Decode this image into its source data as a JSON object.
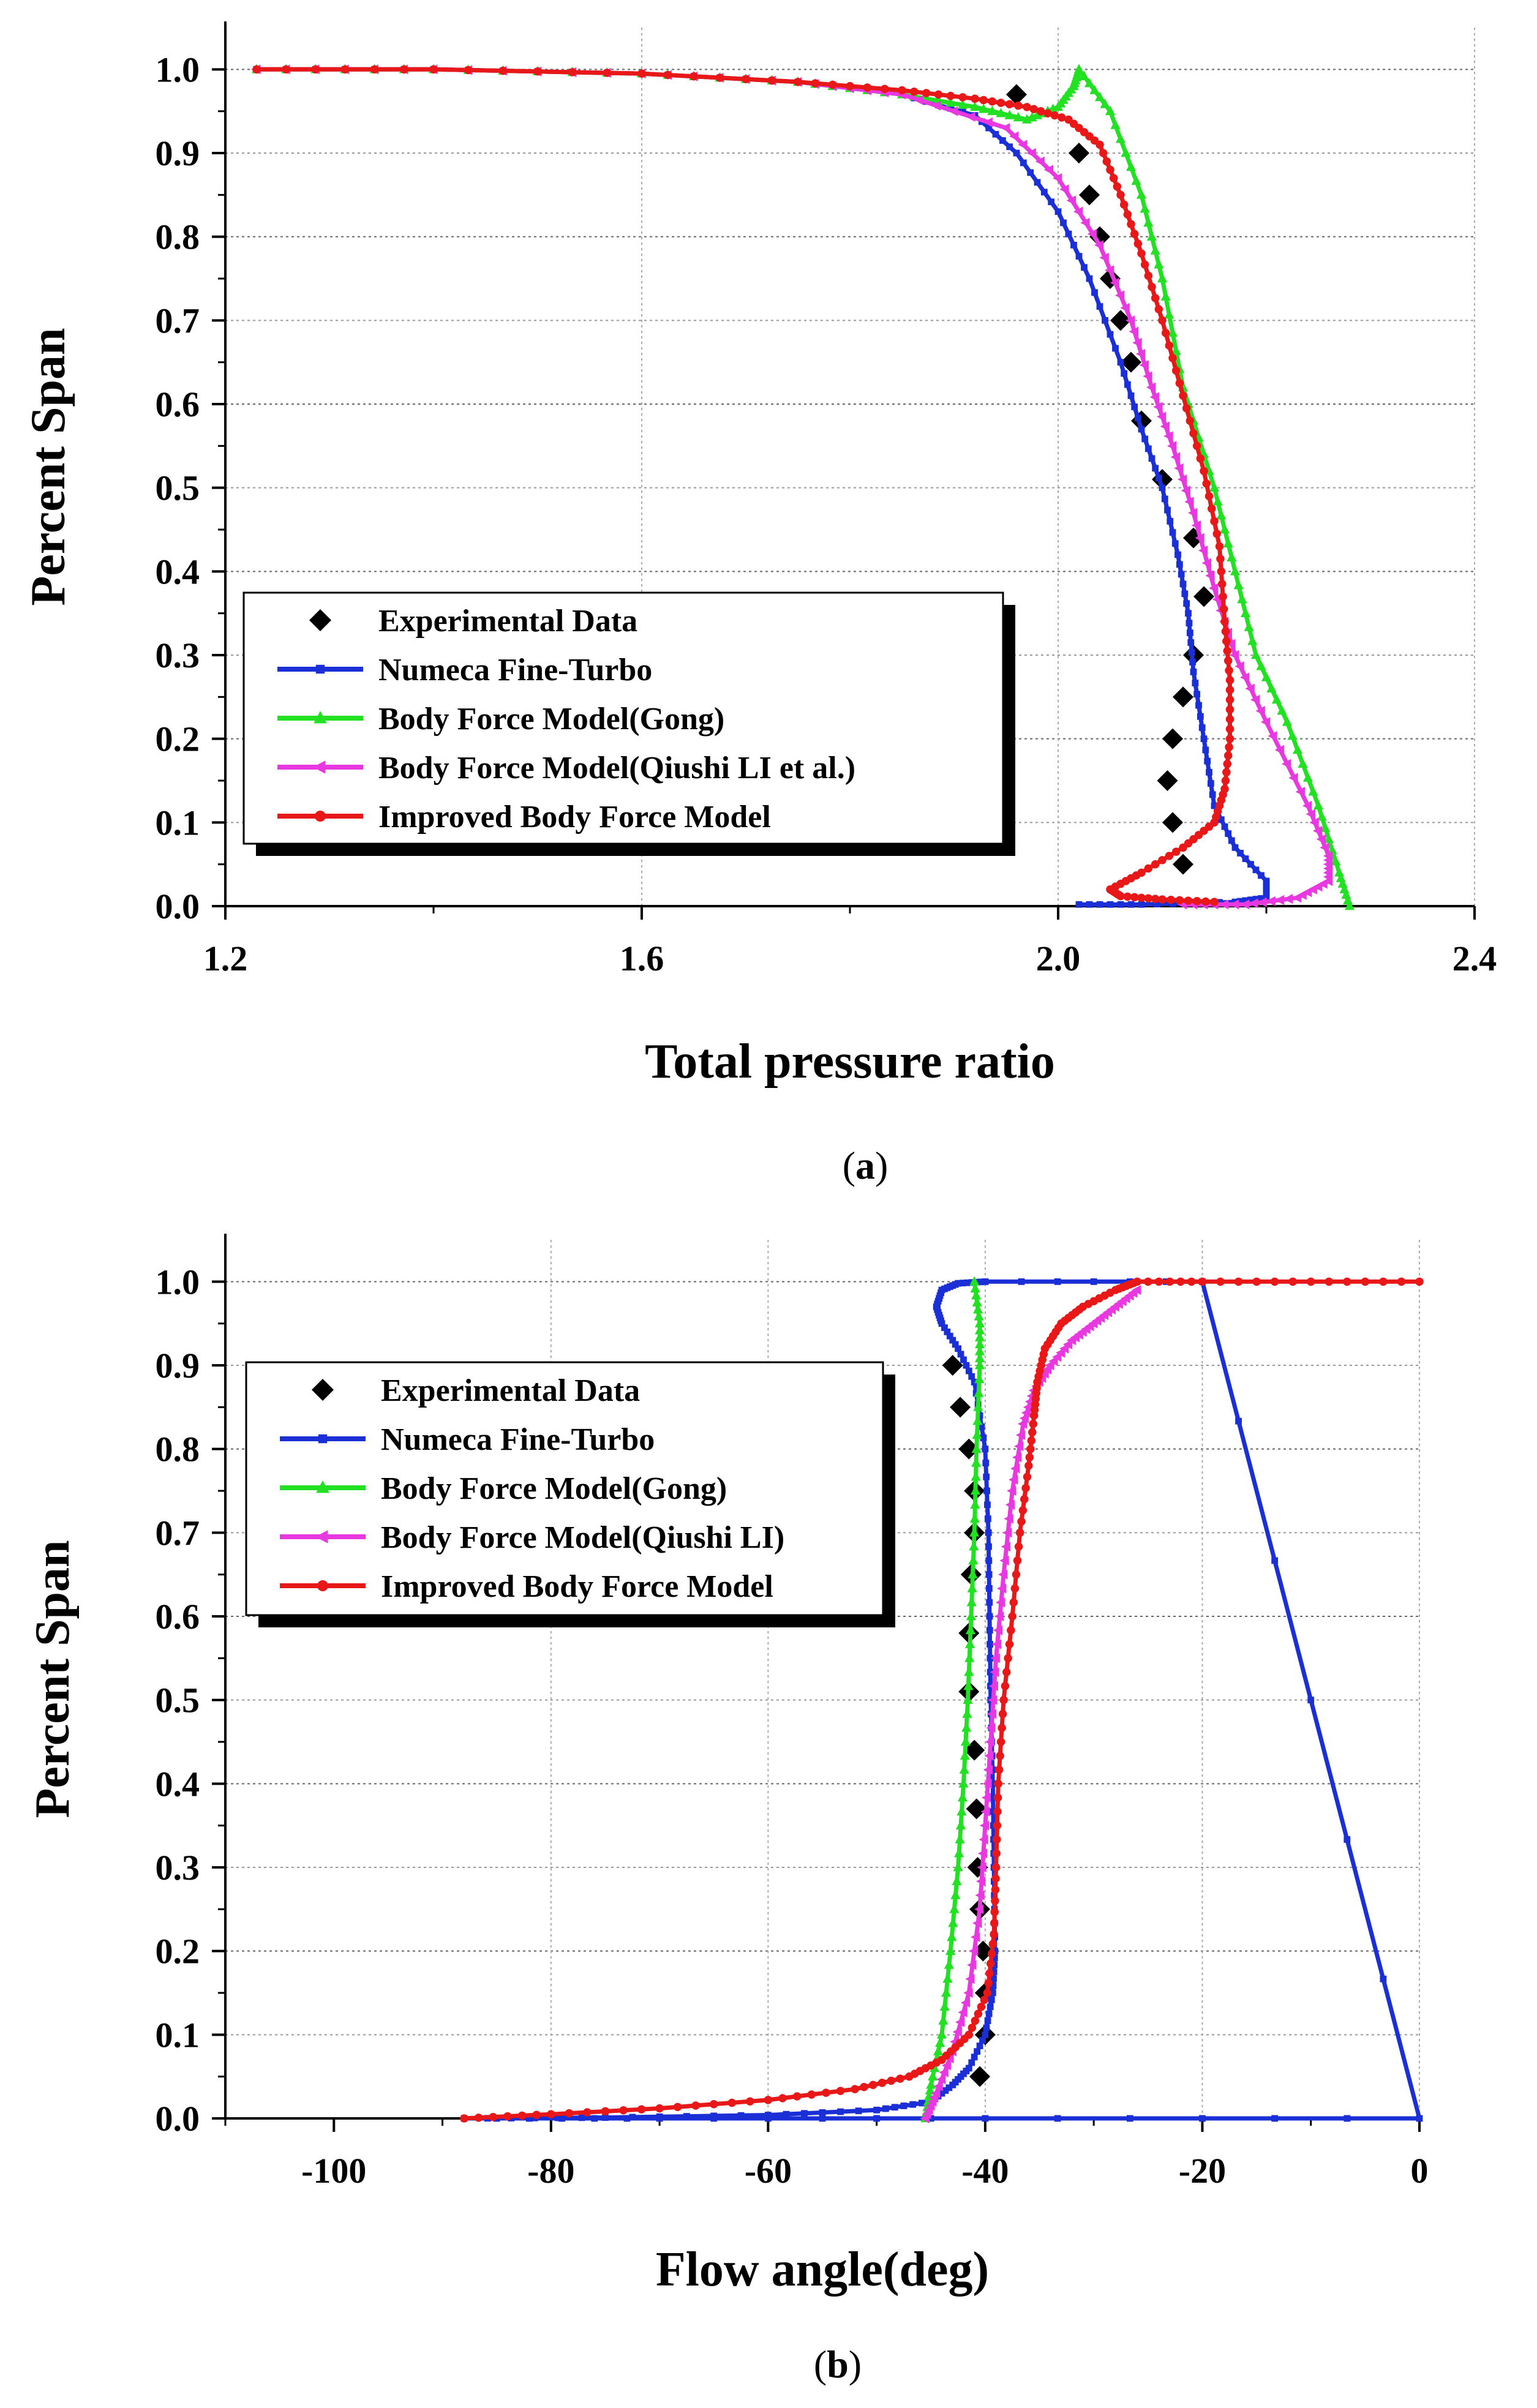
{
  "chart_data": [
    {
      "type": "line",
      "caption_open": "(",
      "caption_letter": "a",
      "caption_close": ")",
      "xlabel": "Total pressure ratio",
      "ylabel": "Percent Span",
      "xlim": [
        1.2,
        2.4
      ],
      "ylim": [
        0.0,
        1.05
      ],
      "xticks": [
        "1.2",
        "1.6",
        "2.0",
        "2.4"
      ],
      "xtick_values": [
        1.2,
        1.6,
        2.0,
        2.4
      ],
      "yticks": [
        "0.0",
        "0.1",
        "0.2",
        "0.3",
        "0.4",
        "0.5",
        "0.6",
        "0.7",
        "0.8",
        "0.9",
        "1.0"
      ],
      "ytick_values": [
        0.0,
        0.1,
        0.2,
        0.3,
        0.4,
        0.5,
        0.6,
        0.7,
        0.8,
        0.9,
        1.0
      ],
      "legend_position": "bottom-left",
      "series": [
        {
          "name": "Experimental Data",
          "color": "#000000",
          "marker": "diamond",
          "line": false,
          "points": [
            [
              1.96,
              0.97
            ],
            [
              2.02,
              0.9
            ],
            [
              2.03,
              0.85
            ],
            [
              2.04,
              0.8
            ],
            [
              2.05,
              0.75
            ],
            [
              2.06,
              0.7
            ],
            [
              2.07,
              0.65
            ],
            [
              2.08,
              0.58
            ],
            [
              2.1,
              0.51
            ],
            [
              2.13,
              0.44
            ],
            [
              2.14,
              0.37
            ],
            [
              2.13,
              0.3
            ],
            [
              2.12,
              0.25
            ],
            [
              2.11,
              0.2
            ],
            [
              2.105,
              0.15
            ],
            [
              2.11,
              0.1
            ],
            [
              2.12,
              0.05
            ]
          ]
        },
        {
          "name": "Numeca Fine-Turbo",
          "color": "#1a2fd6",
          "marker": "square",
          "points": [
            [
              1.23,
              1.0
            ],
            [
              1.4,
              1.0
            ],
            [
              1.6,
              0.995
            ],
            [
              1.75,
              0.985
            ],
            [
              1.85,
              0.97
            ],
            [
              1.92,
              0.945
            ],
            [
              1.96,
              0.9
            ],
            [
              2.0,
              0.83
            ],
            [
              2.03,
              0.75
            ],
            [
              2.06,
              0.65
            ],
            [
              2.08,
              0.57
            ],
            [
              2.1,
              0.5
            ],
            [
              2.115,
              0.42
            ],
            [
              2.125,
              0.35
            ],
            [
              2.13,
              0.28
            ],
            [
              2.14,
              0.2
            ],
            [
              2.15,
              0.12
            ],
            [
              2.17,
              0.07
            ],
            [
              2.2,
              0.03
            ],
            [
              2.2,
              0.01
            ],
            [
              2.17,
              0.005
            ],
            [
              2.08,
              0.002
            ],
            [
              2.02,
              0.002
            ]
          ]
        },
        {
          "name": "Body Force Model(Gong)",
          "color": "#22e022",
          "marker": "triangle-up",
          "points": [
            [
              1.23,
              1.0
            ],
            [
              1.4,
              1.0
            ],
            [
              1.6,
              0.995
            ],
            [
              1.75,
              0.985
            ],
            [
              1.85,
              0.97
            ],
            [
              1.92,
              0.955
            ],
            [
              1.97,
              0.94
            ],
            [
              2.0,
              0.955
            ],
            [
              2.015,
              0.98
            ],
            [
              2.02,
              1.0
            ],
            [
              2.05,
              0.95
            ],
            [
              2.08,
              0.85
            ],
            [
              2.1,
              0.75
            ],
            [
              2.12,
              0.62
            ],
            [
              2.15,
              0.5
            ],
            [
              2.17,
              0.4
            ],
            [
              2.19,
              0.3
            ],
            [
              2.22,
              0.22
            ],
            [
              2.25,
              0.12
            ],
            [
              2.27,
              0.04
            ],
            [
              2.28,
              0.0
            ]
          ]
        },
        {
          "name": "Body Force Model(Qiushi LI et al.)",
          "color": "#e838e0",
          "marker": "triangle-left",
          "points": [
            [
              1.23,
              1.0
            ],
            [
              1.4,
              1.0
            ],
            [
              1.6,
              0.995
            ],
            [
              1.75,
              0.985
            ],
            [
              1.85,
              0.97
            ],
            [
              1.95,
              0.93
            ],
            [
              2.0,
              0.87
            ],
            [
              2.04,
              0.79
            ],
            [
              2.07,
              0.7
            ],
            [
              2.09,
              0.62
            ],
            [
              2.11,
              0.55
            ],
            [
              2.13,
              0.47
            ],
            [
              2.15,
              0.38
            ],
            [
              2.17,
              0.3
            ],
            [
              2.2,
              0.22
            ],
            [
              2.24,
              0.12
            ],
            [
              2.26,
              0.06
            ],
            [
              2.26,
              0.03
            ],
            [
              2.23,
              0.01
            ],
            [
              2.18,
              0.002
            ],
            [
              2.12,
              0.002
            ]
          ]
        },
        {
          "name": "Improved Body Force Model",
          "color": "#e81818",
          "marker": "circle",
          "points": [
            [
              1.23,
              1.0
            ],
            [
              1.4,
              1.0
            ],
            [
              1.6,
              0.995
            ],
            [
              1.75,
              0.985
            ],
            [
              1.85,
              0.975
            ],
            [
              1.92,
              0.965
            ],
            [
              1.97,
              0.955
            ],
            [
              2.01,
              0.94
            ],
            [
              2.04,
              0.91
            ],
            [
              2.06,
              0.85
            ],
            [
              2.08,
              0.78
            ],
            [
              2.1,
              0.7
            ],
            [
              2.12,
              0.61
            ],
            [
              2.14,
              0.52
            ],
            [
              2.155,
              0.43
            ],
            [
              2.16,
              0.34
            ],
            [
              2.165,
              0.27
            ],
            [
              2.165,
              0.2
            ],
            [
              2.16,
              0.14
            ],
            [
              2.15,
              0.1
            ],
            [
              2.12,
              0.07
            ],
            [
              2.08,
              0.04
            ],
            [
              2.05,
              0.02
            ],
            [
              2.06,
              0.012
            ],
            [
              2.1,
              0.008
            ],
            [
              2.15,
              0.005
            ]
          ]
        }
      ]
    },
    {
      "type": "line",
      "caption_open": "(",
      "caption_letter": "b",
      "caption_close": ")",
      "xlabel": "Flow angle(deg)",
      "ylabel": "Percent Span",
      "xlim": [
        -110,
        0
      ],
      "ylim": [
        0.0,
        1.05
      ],
      "xticks": [
        "-100",
        "-80",
        "-60",
        "-40",
        "-20",
        "0"
      ],
      "xtick_values": [
        -100,
        -80,
        -60,
        -40,
        -20,
        0
      ],
      "yticks": [
        "0.0",
        "0.1",
        "0.2",
        "0.3",
        "0.4",
        "0.5",
        "0.6",
        "0.7",
        "0.8",
        "0.9",
        "1.0"
      ],
      "ytick_values": [
        0.0,
        0.1,
        0.2,
        0.3,
        0.4,
        0.5,
        0.6,
        0.7,
        0.8,
        0.9,
        1.0
      ],
      "legend_position": "top-left",
      "series": [
        {
          "name": "Experimental Data",
          "color": "#000000",
          "marker": "diamond",
          "line": false,
          "points": [
            [
              -43.0,
              0.9
            ],
            [
              -42.3,
              0.85
            ],
            [
              -41.5,
              0.8
            ],
            [
              -41.0,
              0.75
            ],
            [
              -41.0,
              0.7
            ],
            [
              -41.3,
              0.65
            ],
            [
              -41.5,
              0.58
            ],
            [
              -41.5,
              0.51
            ],
            [
              -41.0,
              0.44
            ],
            [
              -40.8,
              0.37
            ],
            [
              -40.7,
              0.3
            ],
            [
              -40.5,
              0.25
            ],
            [
              -40.2,
              0.2
            ],
            [
              -40.0,
              0.15
            ],
            [
              -40.0,
              0.1
            ],
            [
              -40.5,
              0.05
            ]
          ]
        },
        {
          "name": "Numeca Fine-Turbo",
          "color": "#1a2fd6",
          "marker": "square",
          "points": [
            [
              -40.0,
              1.0
            ],
            [
              -42.5,
              0.998
            ],
            [
              -44.0,
              0.99
            ],
            [
              -44.5,
              0.97
            ],
            [
              -44.0,
              0.95
            ],
            [
              -42.5,
              0.92
            ],
            [
              -41.0,
              0.88
            ],
            [
              -40.0,
              0.8
            ],
            [
              -39.7,
              0.7
            ],
            [
              -39.6,
              0.6
            ],
            [
              -39.5,
              0.5
            ],
            [
              -39.3,
              0.4
            ],
            [
              -39.2,
              0.3
            ],
            [
              -39.1,
              0.2
            ],
            [
              -39.3,
              0.15
            ],
            [
              -40.0,
              0.1
            ],
            [
              -41.5,
              0.06
            ],
            [
              -43.0,
              0.04
            ],
            [
              -45.0,
              0.02
            ],
            [
              -50.0,
              0.01
            ],
            [
              -60.0,
              0.004
            ],
            [
              -75.0,
              0.001
            ],
            [
              -88.0,
              0.0
            ],
            [
              -70.0,
              0.0
            ],
            [
              -40.0,
              0.0
            ],
            [
              0.0,
              0.0
            ],
            [
              -20.0,
              1.0
            ],
            [
              -40.0,
              1.0
            ]
          ]
        },
        {
          "name": "Body Force Model(Gong)",
          "color": "#22e022",
          "marker": "triangle-up",
          "points": [
            [
              -41.0,
              1.0
            ],
            [
              -40.5,
              0.95
            ],
            [
              -40.5,
              0.9
            ],
            [
              -40.8,
              0.8
            ],
            [
              -41.0,
              0.7
            ],
            [
              -41.3,
              0.6
            ],
            [
              -41.6,
              0.5
            ],
            [
              -42.0,
              0.4
            ],
            [
              -42.5,
              0.3
            ],
            [
              -43.2,
              0.2
            ],
            [
              -44.0,
              0.1
            ],
            [
              -45.0,
              0.04
            ],
            [
              -45.5,
              0.0
            ]
          ]
        },
        {
          "name": "Body Force Model(Qiushi LI)",
          "color": "#e838e0",
          "marker": "triangle-left",
          "points": [
            [
              -26.0,
              0.99
            ],
            [
              -28.0,
              0.97
            ],
            [
              -30.0,
              0.95
            ],
            [
              -32.0,
              0.93
            ],
            [
              -34.0,
              0.9
            ],
            [
              -35.5,
              0.87
            ],
            [
              -36.5,
              0.83
            ],
            [
              -37.5,
              0.75
            ],
            [
              -38.3,
              0.65
            ],
            [
              -39.0,
              0.55
            ],
            [
              -39.5,
              0.45
            ],
            [
              -40.0,
              0.35
            ],
            [
              -40.5,
              0.25
            ],
            [
              -41.5,
              0.15
            ],
            [
              -43.0,
              0.08
            ],
            [
              -44.5,
              0.03
            ],
            [
              -45.5,
              0.0
            ]
          ]
        },
        {
          "name": "Improved Body Force Model",
          "color": "#e81818",
          "marker": "circle",
          "points": [
            [
              0.0,
              1.0
            ],
            [
              -10.0,
              1.0
            ],
            [
              -20.0,
              1.0
            ],
            [
              -26.0,
              1.0
            ],
            [
              -28.0,
              0.99
            ],
            [
              -31.0,
              0.97
            ],
            [
              -33.0,
              0.95
            ],
            [
              -34.5,
              0.92
            ],
            [
              -35.2,
              0.88
            ],
            [
              -35.5,
              0.84
            ],
            [
              -36.0,
              0.78
            ],
            [
              -36.8,
              0.7
            ],
            [
              -37.5,
              0.6
            ],
            [
              -38.3,
              0.5
            ],
            [
              -38.8,
              0.4
            ],
            [
              -39.0,
              0.3
            ],
            [
              -39.2,
              0.22
            ],
            [
              -39.8,
              0.15
            ],
            [
              -41.5,
              0.1
            ],
            [
              -44.0,
              0.07
            ],
            [
              -47.0,
              0.05
            ],
            [
              -52.0,
              0.035
            ],
            [
              -60.0,
              0.022
            ],
            [
              -70.0,
              0.012
            ],
            [
              -80.0,
              0.005
            ],
            [
              -88.0,
              0.0
            ]
          ]
        }
      ]
    }
  ]
}
